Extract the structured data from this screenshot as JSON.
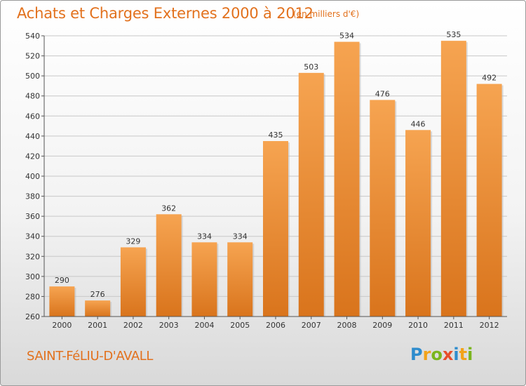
{
  "title": "Achats et Charges Externes 2000 à 2012",
  "unit_label": "(en milliers d'€)",
  "commune": "SAINT-FéLIU-D'AVALL",
  "logo_text": "Proxiti",
  "colors": {
    "title": "#e2711d",
    "bar_top": "#f6a451",
    "bar_bottom": "#d9741c",
    "grid": "#c8c8c8"
  },
  "chart_data": {
    "type": "bar",
    "categories": [
      "2000",
      "2001",
      "2002",
      "2003",
      "2004",
      "2005",
      "2006",
      "2007",
      "2008",
      "2009",
      "2010",
      "2011",
      "2012"
    ],
    "values": [
      290,
      276,
      329,
      362,
      334,
      334,
      435,
      503,
      534,
      476,
      446,
      535,
      492
    ],
    "yticks": [
      260,
      280,
      300,
      320,
      340,
      360,
      380,
      400,
      420,
      440,
      460,
      480,
      500,
      520,
      540
    ],
    "ylim": [
      260,
      540
    ],
    "grid": true,
    "data_labels": true
  }
}
